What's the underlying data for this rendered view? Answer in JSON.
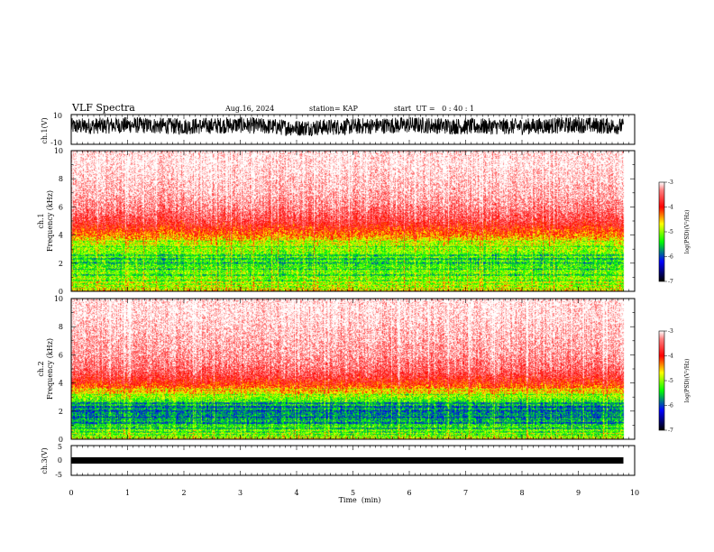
{
  "header": {
    "title": "VLF Spectra",
    "date": "Aug.16, 2024",
    "station": "station= KAP",
    "start": "start  UT =   0 : 40 : 1"
  },
  "panels": {
    "ch1_wave": {
      "label": "ch.1(V)",
      "ticks": [
        "10",
        "-10"
      ]
    },
    "ch1_spec": {
      "label_line1": "ch.1",
      "label_line2": "Frequency  (kHz)",
      "ticks": [
        "10",
        "8",
        "6",
        "4",
        "2",
        "0"
      ]
    },
    "ch2_spec": {
      "label_line1": "ch.2",
      "label_line2": "Frequency  (kHz)",
      "ticks": [
        "10",
        "8",
        "6",
        "4",
        "2",
        "0"
      ]
    },
    "ch3_wave": {
      "label": "ch.3(V)",
      "ticks": [
        "5",
        "0",
        "-5"
      ]
    }
  },
  "xaxis": {
    "label": "Time  (min)",
    "ticks": [
      "0",
      "1",
      "2",
      "3",
      "4",
      "5",
      "6",
      "7",
      "8",
      "9",
      "10"
    ]
  },
  "colorbar": {
    "title": "log(PSD)(V²/Hz)",
    "ticks": [
      "-3",
      "-4",
      "-5",
      "-6",
      "-7"
    ],
    "colors": [
      "#ffffff",
      "#ff0000",
      "#ffff00",
      "#00ff00",
      "#0000ff",
      "#000000"
    ]
  },
  "chart_data": [
    {
      "type": "line",
      "title": "VLF Spectra",
      "ylabel": "ch.1(V)",
      "xlabel": "Time  (min)",
      "xlim": [
        0,
        10
      ],
      "ylim": [
        -10,
        10
      ],
      "series": [
        {
          "x": [
            0,
            1,
            2,
            3,
            4,
            5,
            6,
            7,
            8,
            9,
            9.8
          ],
          "values": [
            2,
            3,
            2,
            3,
            1,
            2,
            3,
            2,
            2,
            3,
            2
          ]
        }
      ]
    },
    {
      "type": "heatmap",
      "ylabel": "Frequency  (kHz)",
      "xlabel": "Time  (min)",
      "xlim": [
        0,
        10
      ],
      "ylim": [
        0,
        10
      ],
      "colorbar_range": [
        -7,
        -3
      ],
      "colorbar_label": "log(PSD)(V²/Hz)",
      "freq_khz": [
        0,
        0.5,
        1,
        1.5,
        2,
        2.5,
        3,
        3.5,
        4,
        4.5,
        5,
        6,
        7,
        8,
        9,
        10
      ],
      "mean_log_psd": [
        -4.5,
        -4.6,
        -4.9,
        -5.0,
        -5.2,
        -5.0,
        -4.9,
        -4.7,
        -4.3,
        -4.0,
        -3.7,
        -3.4,
        -3.2,
        -3.1,
        -3.0,
        -3.0
      ]
    },
    {
      "type": "heatmap",
      "ylabel": "Frequency  (kHz)",
      "xlabel": "Time  (min)",
      "xlim": [
        0,
        10
      ],
      "ylim": [
        0,
        10
      ],
      "colorbar_range": [
        -7,
        -3
      ],
      "colorbar_label": "log(PSD)(V²/Hz)",
      "freq_khz": [
        0,
        0.5,
        1,
        1.5,
        2,
        2.5,
        3,
        3.5,
        4,
        4.5,
        5,
        6,
        7,
        8,
        9,
        10
      ],
      "mean_log_psd": [
        -4.6,
        -4.8,
        -5.2,
        -5.5,
        -5.6,
        -5.3,
        -4.9,
        -4.4,
        -4.0,
        -3.7,
        -3.5,
        -3.3,
        -3.2,
        -3.1,
        -3.0,
        -3.0
      ]
    },
    {
      "type": "line",
      "ylabel": "ch.3(V)",
      "xlabel": "Time  (min)",
      "xlim": [
        0,
        10
      ],
      "ylim": [
        -5,
        5
      ],
      "series": [
        {
          "x": [
            0,
            9.8
          ],
          "values": [
            0,
            0
          ]
        }
      ]
    }
  ]
}
